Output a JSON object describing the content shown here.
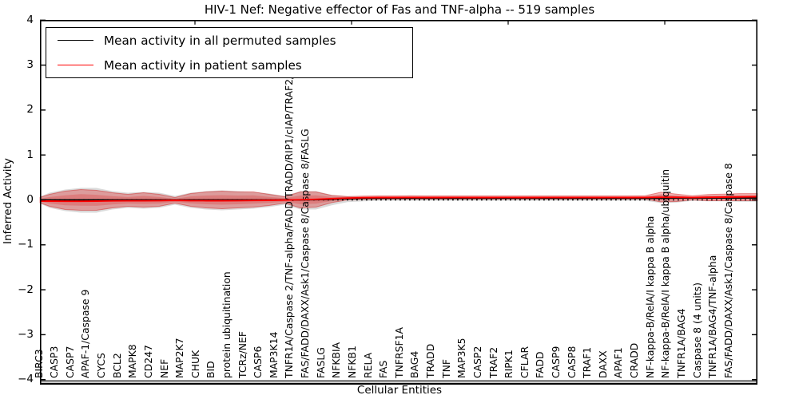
{
  "page": {
    "background": "#ffffff"
  },
  "chart_data": {
    "type": "violin-band",
    "title": "HIV-1 Nef: Negative effector of Fas and TNF-alpha -- 519 samples",
    "xlabel": "Cellular Entities",
    "ylabel": "Inferred Activity",
    "ylim": [
      -4,
      4
    ],
    "yticks": [
      -4,
      -3,
      -2,
      -1,
      0,
      1,
      2,
      3,
      4
    ],
    "ytick_labels": [
      "−4",
      "−3",
      "−2",
      "−1",
      "0",
      "1",
      "2",
      "3",
      "4"
    ],
    "grid": false,
    "zero_line_style": "dotted",
    "legend_position": "upper left",
    "legend": [
      {
        "label": "Mean activity in all permuted samples",
        "color": "#000000"
      },
      {
        "label": "Mean activity in patient samples",
        "color": "#ff0000"
      }
    ],
    "colors": {
      "patient_line": "#ff0000",
      "permuted_line": "#000000",
      "patient_band": "#e03030",
      "permuted_band": "#555555"
    },
    "categories": [
      "BIRC3",
      "CASP3",
      "CASP7",
      "APAF-1/Caspase 9",
      "CYCS",
      "BCL2",
      "MAPK8",
      "CD247",
      "NEF",
      "MAP2K7",
      "CHUK",
      "BID",
      "protein ubiquitination",
      "TCRz/NEF",
      "CASP6",
      "MAP3K14",
      "TNFR1A/Caspase 2/TNF-alpha/FADD/TRADD/RIP1/cIAP/TRAF2/TRAF5",
      "FAS/FADD/DAXX/Ask1/Caspase 8/Caspase 8/FASLG",
      "FASLG",
      "NFKBIA",
      "NFKB1",
      "RELA",
      "FAS",
      "TNFRSF1A",
      "BAG4",
      "TRADD",
      "TNF",
      "MAP3K5",
      "CASP2",
      "TRAF2",
      "RIPK1",
      "CFLAR",
      "FADD",
      "CASP9",
      "CASP8",
      "TRAF1",
      "DAXX",
      "APAF1",
      "CRADD",
      "NF-kappa-B/RelA/I kappa B alpha",
      "NF-kappa-B/RelA/I kappa B alpha/ubiquitin",
      "TNFR1A/BAG4",
      "Caspase 8 (4 units)",
      "TNFR1A/BAG4/TNF-alpha",
      "FAS/FADD/DAXX/Ask1/Caspase 8/Caspase 8"
    ],
    "series": [
      {
        "name": "Mean activity in all permuted samples",
        "type": "line",
        "color": "#000000",
        "values": [
          0,
          0,
          0,
          0,
          0,
          0,
          0,
          0,
          0,
          0,
          0,
          0,
          0,
          0,
          0,
          0,
          0,
          0.004,
          0.013,
          0.027,
          0.036,
          0.036,
          0.036,
          0.036,
          0.036,
          0.036,
          0.036,
          0.036,
          0.036,
          0.036,
          0.036,
          0.036,
          0.036,
          0.036,
          0.036,
          0.036,
          0.036,
          0.036,
          0.036,
          0.036,
          0.04,
          0.04,
          0.04,
          0.04,
          0.04
        ]
      },
      {
        "name": "Mean activity in patient samples",
        "type": "line",
        "color": "#ff0000",
        "values": [
          -0.027,
          -0.03,
          -0.03,
          -0.027,
          -0.022,
          -0.02,
          -0.02,
          -0.016,
          -0.009,
          -0.016,
          -0.018,
          -0.018,
          -0.016,
          -0.013,
          -0.009,
          -0.004,
          0.004,
          0.013,
          0.027,
          0.04,
          0.049,
          0.053,
          0.053,
          0.055,
          0.053,
          0.053,
          0.055,
          0.053,
          0.053,
          0.055,
          0.053,
          0.053,
          0.055,
          0.053,
          0.055,
          0.053,
          0.055,
          0.053,
          0.055,
          0.058,
          0.058,
          0.055,
          0.058,
          0.062,
          0.066
        ]
      },
      {
        "name": "Patient activity distribution band",
        "type": "band",
        "color": "#e03030",
        "opacity": 0.36,
        "upper": [
          0.124,
          0.195,
          0.231,
          0.213,
          0.16,
          0.124,
          0.16,
          0.124,
          0.053,
          0.142,
          0.178,
          0.195,
          0.178,
          0.178,
          0.124,
          0.071,
          0.178,
          0.178,
          0.1,
          0.076,
          0.085,
          0.089,
          0.089,
          0.093,
          0.089,
          0.089,
          0.089,
          0.089,
          0.089,
          0.089,
          0.089,
          0.089,
          0.089,
          0.089,
          0.089,
          0.089,
          0.089,
          0.089,
          0.093,
          0.17,
          0.13,
          0.09,
          0.12,
          0.13,
          0.14
        ],
        "lower": [
          -0.142,
          -0.213,
          -0.231,
          -0.231,
          -0.178,
          -0.142,
          -0.16,
          -0.142,
          -0.071,
          -0.142,
          -0.178,
          -0.195,
          -0.178,
          -0.16,
          -0.124,
          -0.071,
          -0.178,
          -0.16,
          -0.06,
          0.0,
          0.013,
          0.017,
          0.017,
          0.017,
          0.017,
          0.017,
          0.017,
          0.017,
          0.017,
          0.017,
          0.017,
          0.017,
          0.017,
          0.017,
          0.017,
          0.017,
          0.017,
          0.017,
          0.017,
          -0.044,
          -0.036,
          0.0,
          -0.018,
          -0.018,
          -0.018
        ]
      },
      {
        "name": "Permuted activity distribution band",
        "type": "band",
        "color": "#555555",
        "opacity": 0.22,
        "upper": [
          0.16,
          0.231,
          0.266,
          0.266,
          0.195,
          0.16,
          0.178,
          0.16,
          0.089,
          0.16,
          0.195,
          0.213,
          0.195,
          0.178,
          0.142,
          0.089,
          0.195,
          0.195,
          0.11,
          0.08,
          0.06,
          0.053,
          0.053,
          0.053,
          0.053,
          0.053,
          0.053,
          0.053,
          0.053,
          0.053,
          0.053,
          0.053,
          0.053,
          0.053,
          0.053,
          0.053,
          0.053,
          0.053,
          0.071,
          0.12,
          0.1,
          0.06,
          0.09,
          0.09,
          0.1
        ],
        "lower": [
          -0.178,
          -0.249,
          -0.284,
          -0.284,
          -0.213,
          -0.178,
          -0.195,
          -0.178,
          -0.107,
          -0.178,
          -0.213,
          -0.231,
          -0.213,
          -0.195,
          -0.16,
          -0.107,
          -0.213,
          -0.213,
          -0.12,
          -0.05,
          -0.03,
          -0.02,
          -0.02,
          -0.02,
          -0.02,
          -0.02,
          -0.02,
          -0.02,
          -0.02,
          -0.02,
          -0.02,
          -0.02,
          -0.02,
          -0.02,
          -0.02,
          -0.02,
          -0.02,
          -0.02,
          -0.02,
          -0.07,
          -0.06,
          -0.02,
          -0.03,
          -0.03,
          -0.04
        ]
      }
    ]
  }
}
